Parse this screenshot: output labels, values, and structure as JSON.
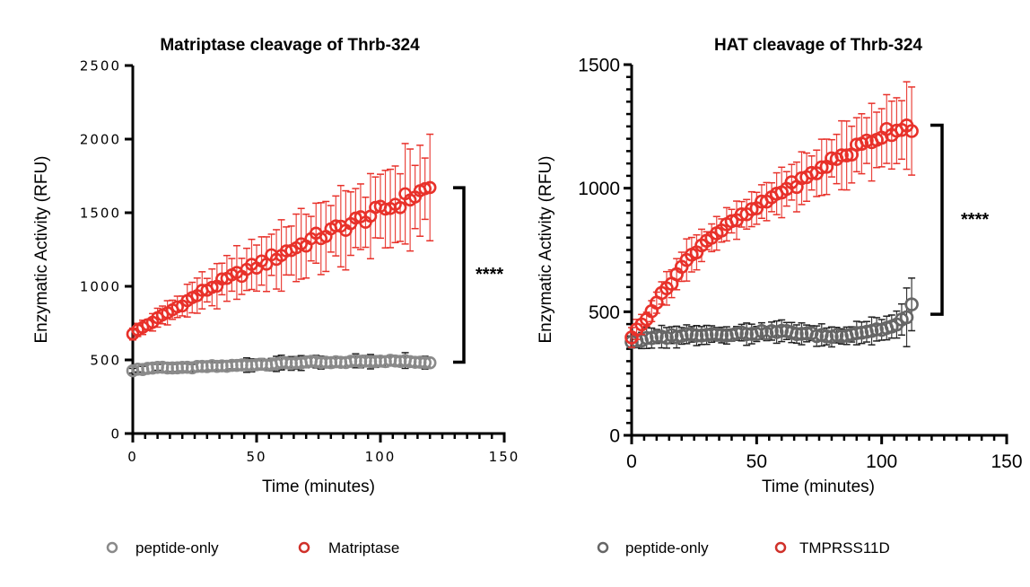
{
  "chart_data": [
    {
      "type": "scatter",
      "title": "Matriptase cleavage of Thrb-324",
      "xlabel": "Time (minutes)",
      "ylabel": "Enzymatic Activity (RFU)",
      "xlim": [
        0,
        150
      ],
      "ylim": [
        0,
        2500
      ],
      "xticks": [
        "0",
        "50",
        "100",
        "150"
      ],
      "yticks": [
        "0",
        "500",
        "1000",
        "1500",
        "2000",
        "2500"
      ],
      "grid": false,
      "legend_position": "bottom",
      "significance": "****",
      "series": [
        {
          "name": "peptide-only",
          "color": "#8a8a8a",
          "error_color": "#222222",
          "x": [
            0,
            10,
            20,
            30,
            40,
            50,
            60,
            70,
            80,
            90,
            100,
            110,
            120
          ],
          "y": [
            430,
            450,
            445,
            455,
            460,
            470,
            475,
            485,
            480,
            490,
            495,
            490,
            485
          ],
          "error": [
            20,
            25,
            25,
            30,
            35,
            40,
            40,
            40,
            35,
            40,
            40,
            45,
            40
          ]
        },
        {
          "name": "Matriptase",
          "color": "#e8312a",
          "error_color": "#e8312a",
          "x": [
            0,
            10,
            20,
            30,
            40,
            50,
            60,
            70,
            80,
            90,
            100,
            110,
            120
          ],
          "y": [
            680,
            780,
            880,
            980,
            1060,
            1140,
            1220,
            1300,
            1370,
            1440,
            1510,
            1590,
            1670
          ],
          "error": [
            40,
            60,
            80,
            110,
            140,
            170,
            190,
            200,
            210,
            220,
            240,
            270,
            280
          ]
        }
      ]
    },
    {
      "type": "scatter",
      "title": "HAT cleavage of Thrb-324",
      "xlabel": "Time (minutes)",
      "ylabel": "Enzymatic Activity (RFU)",
      "xlim": [
        0,
        150
      ],
      "ylim": [
        0,
        1500
      ],
      "xticks": [
        "0",
        "50",
        "100",
        "150"
      ],
      "yticks": [
        "0",
        "500",
        "1000",
        "1500"
      ],
      "grid": false,
      "legend_position": "bottom",
      "significance": "****",
      "series": [
        {
          "name": "peptide-only",
          "color": "#666666",
          "error_color": "#222222",
          "x": [
            0,
            10,
            20,
            30,
            40,
            50,
            60,
            70,
            80,
            90,
            100,
            105,
            110,
            112
          ],
          "y": [
            380,
            395,
            405,
            410,
            410,
            415,
            420,
            410,
            400,
            415,
            430,
            440,
            470,
            550
          ],
          "error": [
            30,
            35,
            35,
            35,
            35,
            35,
            35,
            35,
            40,
            40,
            50,
            60,
            100,
            150
          ]
        },
        {
          "name": "TMPRSS11D",
          "color": "#e8312a",
          "error_color": "#e8312a",
          "x": [
            0,
            5,
            10,
            15,
            20,
            25,
            30,
            40,
            50,
            60,
            70,
            80,
            90,
            100,
            105,
            110,
            112
          ],
          "y": [
            400,
            460,
            540,
            610,
            680,
            740,
            790,
            860,
            920,
            990,
            1040,
            1110,
            1160,
            1220,
            1240,
            1250,
            1255
          ],
          "error": [
            40,
            40,
            40,
            60,
            70,
            60,
            50,
            60,
            70,
            80,
            90,
            100,
            120,
            130,
            130,
            140,
            140
          ]
        }
      ]
    }
  ]
}
